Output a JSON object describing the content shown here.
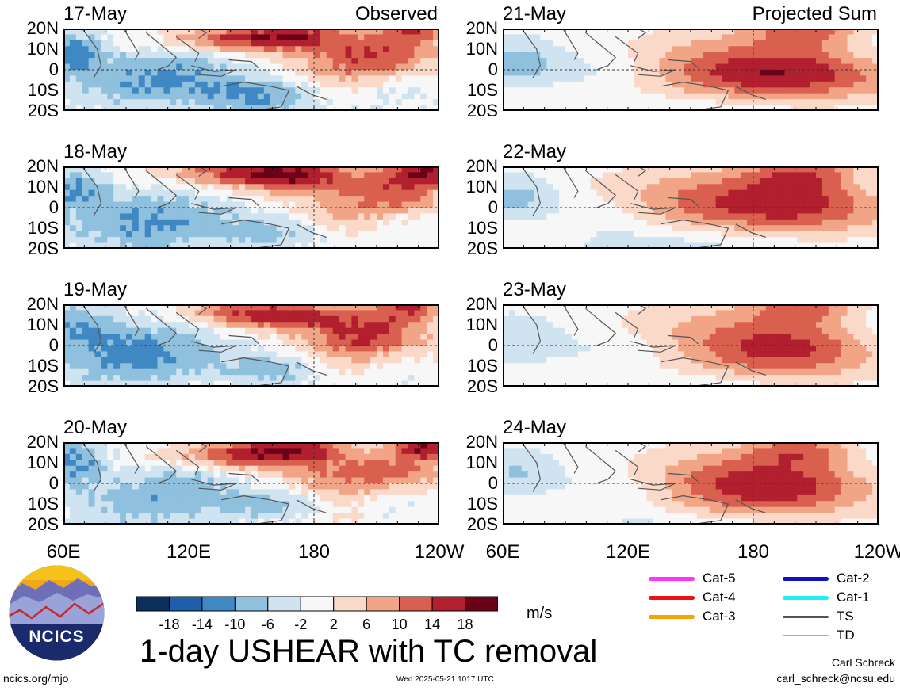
{
  "colors": {
    "scale": [
      "#0d2f5e",
      "#1f5ea8",
      "#3f88c4",
      "#8fc0de",
      "#cfe3f0",
      "#f7f7f7",
      "#fbd9c9",
      "#f1a586",
      "#d9604f",
      "#b21f2e",
      "#6b0218"
    ],
    "land": "#555555"
  },
  "chart_data": [
    {
      "type": "heatmap",
      "date": "17-May",
      "tag": "Observed",
      "variable": "USHEAR",
      "units": "m/s"
    },
    {
      "type": "heatmap",
      "date": "18-May",
      "tag": "",
      "variable": "USHEAR",
      "units": "m/s"
    },
    {
      "type": "heatmap",
      "date": "19-May",
      "tag": "",
      "variable": "USHEAR",
      "units": "m/s"
    },
    {
      "type": "heatmap",
      "date": "20-May",
      "tag": "",
      "variable": "USHEAR",
      "units": "m/s"
    },
    {
      "type": "heatmap",
      "date": "21-May",
      "tag": "Projected Sum",
      "variable": "USHEAR",
      "units": "m/s"
    },
    {
      "type": "heatmap",
      "date": "22-May",
      "tag": "",
      "variable": "USHEAR",
      "units": "m/s"
    },
    {
      "type": "heatmap",
      "date": "23-May",
      "tag": "",
      "variable": "USHEAR",
      "units": "m/s"
    },
    {
      "type": "heatmap",
      "date": "24-May",
      "tag": "",
      "variable": "USHEAR",
      "units": "m/s"
    }
  ],
  "axes": {
    "y_ticks": [
      "20N",
      "10N",
      "0",
      "10S",
      "20S"
    ],
    "y_values": [
      20,
      10,
      0,
      -10,
      -20
    ],
    "x_ticks": [
      "60E",
      "120E",
      "180",
      "120W"
    ],
    "x_values": [
      60,
      120,
      180,
      240
    ],
    "x_range": [
      60,
      240
    ],
    "y_range": [
      -20,
      20
    ]
  },
  "colorbar": {
    "labels": [
      "-18",
      "-14",
      "-10",
      "-6",
      "-2",
      "2",
      "6",
      "10",
      "14",
      "18"
    ],
    "units": "m/s"
  },
  "title": "1-day USHEAR with TC removal",
  "logo": {
    "text": "NCICS"
  },
  "footer": {
    "left": "ncics.org/mjo",
    "center": "Wed 2025-05-21 1017 UTC",
    "right_name": "Carl Schreck",
    "right_email": "carl_schreck@ncsu.edu"
  },
  "tc_legend": [
    {
      "label": "Cat-5",
      "color": "#ff33ff",
      "style": "thick"
    },
    {
      "label": "Cat-4",
      "color": "#ee1111",
      "style": "thick"
    },
    {
      "label": "Cat-3",
      "color": "#f5a300",
      "style": "thick"
    },
    {
      "label": "Cat-2",
      "color": "#1111cc",
      "style": "thick"
    },
    {
      "label": "Cat-1",
      "color": "#22eeee",
      "style": "thick"
    },
    {
      "label": "TS",
      "color": "#555555",
      "style": "medium"
    },
    {
      "label": "TD",
      "color": "#aaaaaa",
      "style": "thin"
    }
  ]
}
